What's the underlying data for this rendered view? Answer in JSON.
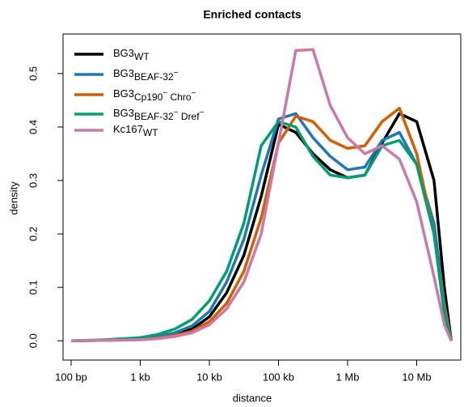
{
  "chart_data": {
    "type": "line",
    "title": "Enriched contacts",
    "xlabel": "distance",
    "ylabel": "density",
    "xscale": "log",
    "xlim": [
      76.4,
      43400000
    ],
    "ylim": [
      -0.036,
      0.574
    ],
    "xticks": [
      {
        "value": 100,
        "label": "100 bp"
      },
      {
        "value": 1000,
        "label": "1 kb"
      },
      {
        "value": 10000,
        "label": "10 kb"
      },
      {
        "value": 100000,
        "label": "100 kb"
      },
      {
        "value": 1000000,
        "label": "1 Mb"
      },
      {
        "value": 10000000,
        "label": "10 Mb"
      }
    ],
    "yticks": [
      {
        "value": 0,
        "label": "0.0"
      },
      {
        "value": 0.1,
        "label": "0.1"
      },
      {
        "value": 0.2,
        "label": "0.2"
      },
      {
        "value": 0.3,
        "label": "0.3"
      },
      {
        "value": 0.4,
        "label": "0.4"
      },
      {
        "value": 0.5,
        "label": "0.5"
      }
    ],
    "legend": "top-left",
    "x": [
      100,
      316,
      1000,
      1778,
      3162,
      5623,
      10000,
      17783,
      31623,
      56234,
      100000,
      177828,
      316228,
      562341,
      1000000,
      1778279,
      3162278,
      5623413,
      10000000,
      17782794,
      25118864,
      31622777
    ],
    "series": [
      {
        "name": [
          {
            "text": "BG3"
          },
          {
            "text": "WT",
            "script": "sub"
          }
        ],
        "color": "#000000",
        "values": [
          0,
          0.001,
          0.003,
          0.006,
          0.012,
          0.022,
          0.045,
          0.09,
          0.16,
          0.27,
          0.405,
          0.39,
          0.35,
          0.32,
          0.305,
          0.31,
          0.37,
          0.425,
          0.41,
          0.3,
          0.1,
          0
        ]
      },
      {
        "name": [
          {
            "text": "BG3"
          },
          {
            "text": "BEAF-32",
            "script": "sub"
          },
          {
            "text": "−",
            "script": "sup"
          }
        ],
        "color": "#1f77b4",
        "values": [
          0,
          0.001,
          0.004,
          0.008,
          0.015,
          0.028,
          0.055,
          0.11,
          0.19,
          0.31,
          0.415,
          0.425,
          0.38,
          0.345,
          0.32,
          0.325,
          0.375,
          0.39,
          0.33,
          0.22,
          0.07,
          0
        ]
      },
      {
        "name": [
          {
            "text": "BG3"
          },
          {
            "text": "Cp190",
            "script": "sub"
          },
          {
            "text": "−",
            "script": "sup"
          },
          {
            "text": " Chro",
            "script": "sub"
          },
          {
            "text": "−",
            "script": "sup"
          }
        ],
        "color": "#d55e00",
        "values": [
          0,
          0.001,
          0.002,
          0.005,
          0.01,
          0.018,
          0.036,
          0.07,
          0.13,
          0.23,
          0.37,
          0.42,
          0.41,
          0.375,
          0.36,
          0.365,
          0.41,
          0.435,
          0.35,
          0.2,
          0.06,
          0
        ]
      },
      {
        "name": [
          {
            "text": "BG3"
          },
          {
            "text": "BEAF-32",
            "script": "sub"
          },
          {
            "text": "−",
            "script": "sup"
          },
          {
            "text": " Dref",
            "script": "sub"
          },
          {
            "text": "−",
            "script": "sup"
          }
        ],
        "color": "#009e73",
        "values": [
          0,
          0.002,
          0.006,
          0.012,
          0.022,
          0.04,
          0.075,
          0.13,
          0.22,
          0.365,
          0.41,
          0.4,
          0.345,
          0.31,
          0.305,
          0.31,
          0.365,
          0.375,
          0.33,
          0.2,
          0.05,
          0
        ]
      },
      {
        "name": [
          {
            "text": "Kc167"
          },
          {
            "text": "WT",
            "script": "sub"
          }
        ],
        "color": "#cc79a7",
        "values": [
          0,
          0.001,
          0.002,
          0.004,
          0.008,
          0.015,
          0.03,
          0.06,
          0.11,
          0.2,
          0.37,
          0.543,
          0.545,
          0.44,
          0.38,
          0.35,
          0.365,
          0.34,
          0.26,
          0.12,
          0.03,
          0
        ]
      }
    ]
  }
}
